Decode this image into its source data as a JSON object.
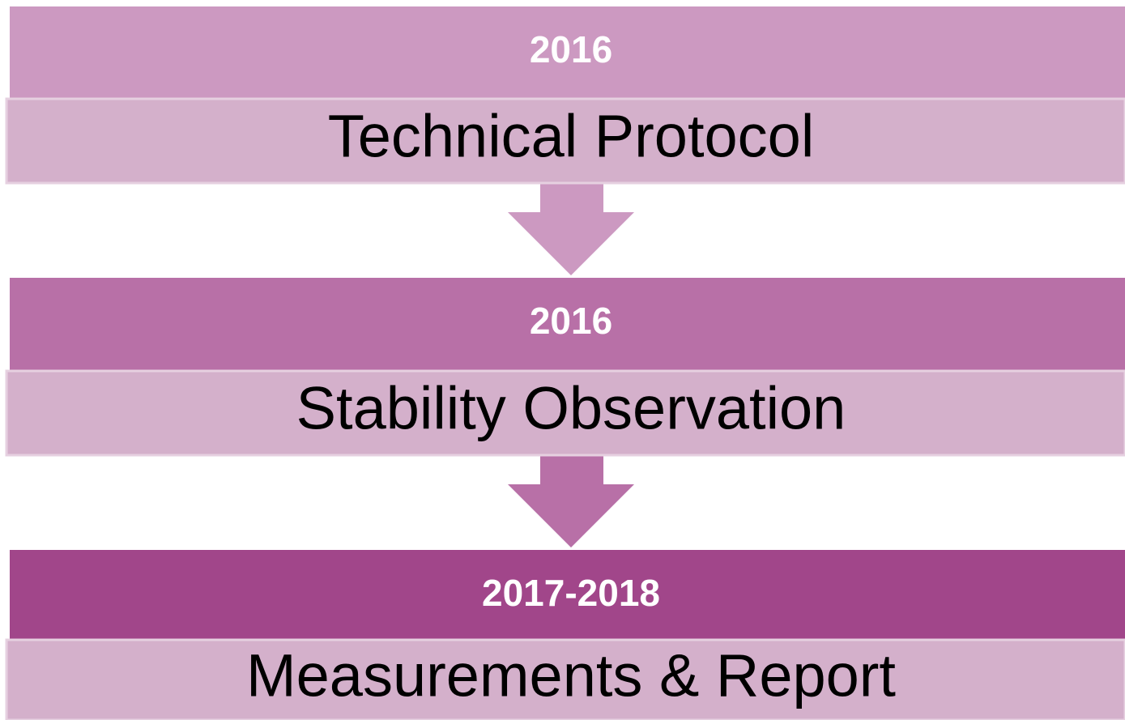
{
  "steps": [
    {
      "period": "2016",
      "label": "Technical Protocol"
    },
    {
      "period": "2016",
      "label": "Stability Observation"
    },
    {
      "period": "2017-2018",
      "label": "Measurements & Report"
    }
  ]
}
